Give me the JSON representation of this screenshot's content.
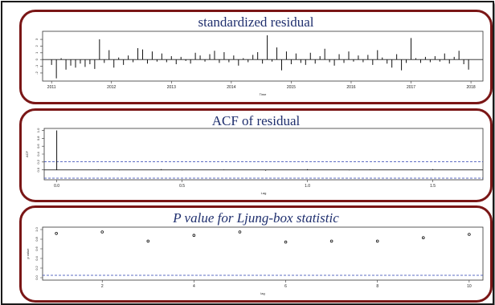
{
  "chart_data": [
    {
      "type": "bar",
      "title": "standardized residual",
      "xlabel": "Time",
      "ylabel": "",
      "xlim": [
        2010.85,
        2018.2
      ],
      "ylim": [
        -3.2,
        4.2
      ],
      "yticks": [
        -2,
        -1,
        0,
        1,
        2,
        3
      ],
      "xticks": [
        2011,
        2012,
        2013,
        2014,
        2015,
        2016,
        2017,
        2018
      ],
      "x": [
        2011.0,
        2011.08,
        2011.16,
        2011.24,
        2011.32,
        2011.4,
        2011.48,
        2011.56,
        2011.64,
        2011.72,
        2011.8,
        2011.88,
        2011.96,
        2012.04,
        2012.12,
        2012.2,
        2012.28,
        2012.36,
        2012.44,
        2012.52,
        2012.6,
        2012.68,
        2012.76,
        2012.84,
        2012.92,
        2013.0,
        2013.08,
        2013.16,
        2013.24,
        2013.32,
        2013.4,
        2013.48,
        2013.56,
        2013.64,
        2013.72,
        2013.8,
        2013.88,
        2013.96,
        2014.04,
        2014.12,
        2014.2,
        2014.28,
        2014.36,
        2014.44,
        2014.52,
        2014.6,
        2014.68,
        2014.76,
        2014.84,
        2014.92,
        2015.0,
        2015.08,
        2015.16,
        2015.24,
        2015.32,
        2015.4,
        2015.48,
        2015.56,
        2015.64,
        2015.72,
        2015.8,
        2015.88,
        2015.96,
        2016.04,
        2016.12,
        2016.2,
        2016.28,
        2016.36,
        2016.44,
        2016.52,
        2016.6,
        2016.68,
        2016.76,
        2016.84,
        2016.92,
        2017.0,
        2017.08,
        2017.16,
        2017.24,
        2017.32,
        2017.4,
        2017.48,
        2017.56,
        2017.64,
        2017.72,
        2017.8,
        2017.88,
        2017.96
      ],
      "values": [
        -0.8,
        -2.8,
        0.2,
        -1.5,
        -0.9,
        -1.2,
        -0.6,
        -1.1,
        -0.7,
        -1.4,
        3.0,
        -0.5,
        1.4,
        -1.2,
        0.3,
        -0.8,
        0.6,
        -0.4,
        1.7,
        1.5,
        -0.6,
        1.2,
        -0.3,
        0.9,
        -0.4,
        0.5,
        -0.7,
        0.4,
        -0.2,
        -0.6,
        1.0,
        0.6,
        -0.3,
        0.8,
        1.3,
        -0.5,
        1.1,
        -0.4,
        0.6,
        -0.9,
        0.2,
        -0.4,
        0.7,
        1.1,
        -0.6,
        3.6,
        -0.3,
        1.8,
        -1.6,
        1.2,
        -0.7,
        0.9,
        -0.5,
        -0.8,
        1.0,
        -0.6,
        0.5,
        1.6,
        -0.4,
        -0.9,
        0.8,
        -0.5,
        1.2,
        -0.3,
        0.6,
        -0.4,
        0.7,
        -0.8,
        1.4,
        0.3,
        -0.6,
        -1.2,
        0.8,
        -1.6,
        -0.5,
        3.2,
        0.2,
        -0.5,
        0.4,
        -0.4,
        0.5,
        -0.3,
        0.9,
        -0.6,
        0.4,
        1.3,
        -0.7,
        -1.5
      ]
    },
    {
      "type": "bar",
      "title": "ACF of residual",
      "xlabel": "Lag",
      "ylabel": "ACF",
      "xlim": [
        -0.05,
        1.7
      ],
      "ylim": [
        -0.25,
        1.05
      ],
      "yticks": [
        0.0,
        0.2,
        0.4,
        0.6,
        0.8,
        1.0
      ],
      "xticks": [
        0.0,
        0.5,
        1.0,
        1.5
      ],
      "xtick_labels": [
        "0.0",
        "0.5",
        "1.0",
        "1.5"
      ],
      "lags": [
        0.0,
        0.0833,
        0.1667,
        0.25,
        0.3333,
        0.4167,
        0.5,
        0.5833,
        0.6667,
        0.75,
        0.8333,
        0.9167,
        1.0,
        1.0833,
        1.1667,
        1.25,
        1.3333,
        1.4167,
        1.5,
        1.5833
      ],
      "values": [
        1.0,
        0.0,
        0.01,
        -0.01,
        0.0,
        0.02,
        -0.01,
        0.0,
        0.01,
        0.0,
        -0.02,
        0.0,
        0.02,
        0.0,
        -0.01,
        0.01,
        0.0,
        -0.01,
        0.02,
        0.0
      ],
      "confidence_band": 0.21
    },
    {
      "type": "scatter",
      "title": "P value for Ljung-box statistic",
      "xlabel": "lag",
      "ylabel": "p value",
      "xlim": [
        0.7,
        10.3
      ],
      "ylim": [
        -0.05,
        1.05
      ],
      "yticks": [
        0.0,
        0.2,
        0.4,
        0.6,
        0.8,
        1.0
      ],
      "xticks": [
        2,
        4,
        6,
        8,
        10
      ],
      "x": [
        1,
        2,
        3,
        4,
        5,
        6,
        7,
        8,
        9,
        10
      ],
      "y": [
        0.92,
        0.95,
        0.76,
        0.88,
        0.95,
        0.74,
        0.76,
        0.76,
        0.83,
        0.9
      ],
      "reference_line": 0.05
    }
  ]
}
